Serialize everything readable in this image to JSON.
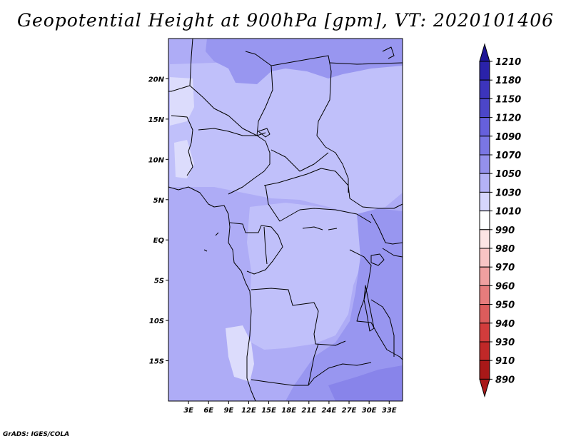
{
  "title": "Geopotential Height at 900hPa [gpm], VT: 2020101406",
  "credit": "GrADS: IGES/COLA",
  "map": {
    "lon_ticks": [
      "3E",
      "6E",
      "9E",
      "12E",
      "15E",
      "18E",
      "21E",
      "24E",
      "27E",
      "30E",
      "33E"
    ],
    "lat_ticks": [
      "20N",
      "15N",
      "10N",
      "5N",
      "EQ",
      "5S",
      "10S",
      "15S"
    ],
    "lon_range": [
      0,
      35
    ],
    "lat_range": [
      -20,
      25
    ]
  },
  "colorbar": {
    "levels": [
      "1210",
      "1180",
      "1150",
      "1120",
      "1090",
      "1070",
      "1050",
      "1030",
      "1010",
      "990",
      "980",
      "970",
      "960",
      "950",
      "940",
      "930",
      "910",
      "890"
    ],
    "colors": [
      "#1e1496",
      "#2a22aa",
      "#3c34bc",
      "#4c46c8",
      "#6660dc",
      "#7a76e4",
      "#9490ec",
      "#b4b2f6",
      "#d6d6fc",
      "#ffffff",
      "#fce4e4",
      "#f8c4c4",
      "#f0a0a0",
      "#e67c7c",
      "#dc5c5c",
      "#d23c3c",
      "#c02828",
      "#a81818"
    ]
  },
  "colors": {
    "base_fill": "#aeacf6",
    "lighter_fill": "#c0c0fa",
    "lightest_fill": "#dcdcfc",
    "darker_fill": "#9896f0",
    "darkest_fill": "#8884ea"
  }
}
